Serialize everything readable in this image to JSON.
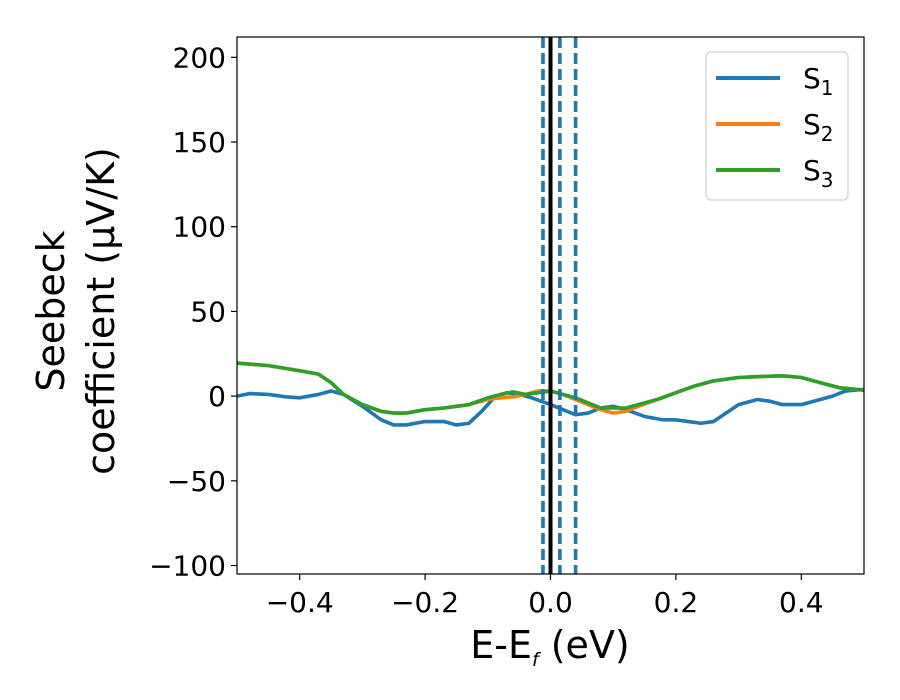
{
  "chart_data": {
    "type": "line",
    "xlabel": {
      "main": "E-E",
      "sub": "f",
      "unit": " (eV)"
    },
    "ylabel": {
      "line1": "Seebeck",
      "line2": "coefficient  (μV/K)"
    },
    "xlim": [
      -0.5,
      0.5
    ],
    "ylim": [
      -105,
      212
    ],
    "xticks": [
      {
        "value": -0.4,
        "label": "−0.4"
      },
      {
        "value": -0.2,
        "label": "−0.2"
      },
      {
        "value": 0.0,
        "label": "0.0"
      },
      {
        "value": 0.2,
        "label": "0.2"
      },
      {
        "value": 0.4,
        "label": "0.4"
      }
    ],
    "yticks": [
      {
        "value": -100,
        "label": "−100"
      },
      {
        "value": -50,
        "label": "−50"
      },
      {
        "value": 0,
        "label": "0"
      },
      {
        "value": 50,
        "label": "50"
      },
      {
        "value": 100,
        "label": "100"
      },
      {
        "value": 150,
        "label": "150"
      },
      {
        "value": 200,
        "label": "200"
      }
    ],
    "grid": false,
    "legend_position": "top-right",
    "vlines": [
      {
        "x": 0.0,
        "color": "#000000",
        "style": "solid"
      },
      {
        "x": -0.012,
        "color": "#1f77b4",
        "style": "dashed"
      },
      {
        "x": 0.015,
        "color": "#1f77b4",
        "style": "dashed"
      },
      {
        "x": 0.04,
        "color": "#1f77b4",
        "style": "dashed"
      }
    ],
    "series": [
      {
        "name": "S",
        "sub": "1",
        "color": "#1f77b4",
        "x": [
          -0.5,
          -0.48,
          -0.45,
          -0.42,
          -0.4,
          -0.37,
          -0.35,
          -0.33,
          -0.3,
          -0.27,
          -0.25,
          -0.23,
          -0.2,
          -0.17,
          -0.15,
          -0.13,
          -0.11,
          -0.09,
          -0.07,
          -0.05,
          -0.03,
          0.0,
          0.02,
          0.04,
          0.06,
          0.08,
          0.1,
          0.12,
          0.15,
          0.18,
          0.2,
          0.22,
          0.24,
          0.26,
          0.28,
          0.3,
          0.33,
          0.35,
          0.37,
          0.4,
          0.42,
          0.45,
          0.47,
          0.5
        ],
        "y": [
          0,
          1.5,
          1,
          -0.5,
          -1,
          1,
          3,
          1,
          -6,
          -14,
          -17,
          -17,
          -15,
          -15,
          -17,
          -16,
          -9,
          -1,
          2,
          1,
          -1,
          -5,
          -8,
          -11,
          -10,
          -7,
          -6,
          -8,
          -12,
          -14,
          -14,
          -15,
          -16,
          -15,
          -10,
          -5,
          -2,
          -3,
          -5,
          -5,
          -3,
          0,
          3,
          4
        ]
      },
      {
        "name": "S",
        "sub": "2",
        "color": "#ff7f0e",
        "x": [
          -0.5,
          -0.45,
          -0.4,
          -0.37,
          -0.35,
          -0.33,
          -0.3,
          -0.27,
          -0.25,
          -0.23,
          -0.2,
          -0.17,
          -0.15,
          -0.13,
          -0.1,
          -0.08,
          -0.06,
          -0.04,
          -0.02,
          0.0,
          0.02,
          0.04,
          0.06,
          0.08,
          0.1,
          0.12,
          0.14,
          0.17,
          0.2,
          0.23,
          0.26,
          0.3,
          0.33,
          0.37,
          0.4,
          0.43,
          0.46,
          0.5
        ],
        "y": [
          19.5,
          18,
          15,
          13,
          8,
          1,
          -5,
          -9,
          -10,
          -10,
          -8,
          -7,
          -6,
          -5,
          -2,
          -1,
          -0.5,
          1,
          3,
          3,
          1,
          -2,
          -5,
          -8,
          -10,
          -9,
          -6,
          -2,
          2,
          6,
          9,
          11,
          11.5,
          12,
          11,
          8,
          5,
          3.5
        ]
      },
      {
        "name": "S",
        "sub": "3",
        "color": "#2ca02c",
        "x": [
          -0.5,
          -0.45,
          -0.4,
          -0.37,
          -0.35,
          -0.33,
          -0.3,
          -0.27,
          -0.25,
          -0.23,
          -0.2,
          -0.17,
          -0.15,
          -0.13,
          -0.1,
          -0.08,
          -0.06,
          -0.04,
          -0.02,
          0.0,
          0.02,
          0.04,
          0.06,
          0.08,
          0.1,
          0.12,
          0.14,
          0.17,
          0.2,
          0.23,
          0.26,
          0.3,
          0.33,
          0.37,
          0.4,
          0.43,
          0.46,
          0.5
        ],
        "y": [
          19.5,
          18,
          15,
          13,
          8,
          1,
          -5,
          -9,
          -10,
          -10,
          -8,
          -7,
          -6,
          -5,
          -1,
          1,
          2.5,
          1,
          2,
          3,
          1,
          -1,
          -4,
          -7,
          -7,
          -7,
          -5,
          -2,
          2,
          6,
          9,
          11,
          11.5,
          12,
          11,
          8,
          5,
          3.5
        ]
      }
    ]
  }
}
